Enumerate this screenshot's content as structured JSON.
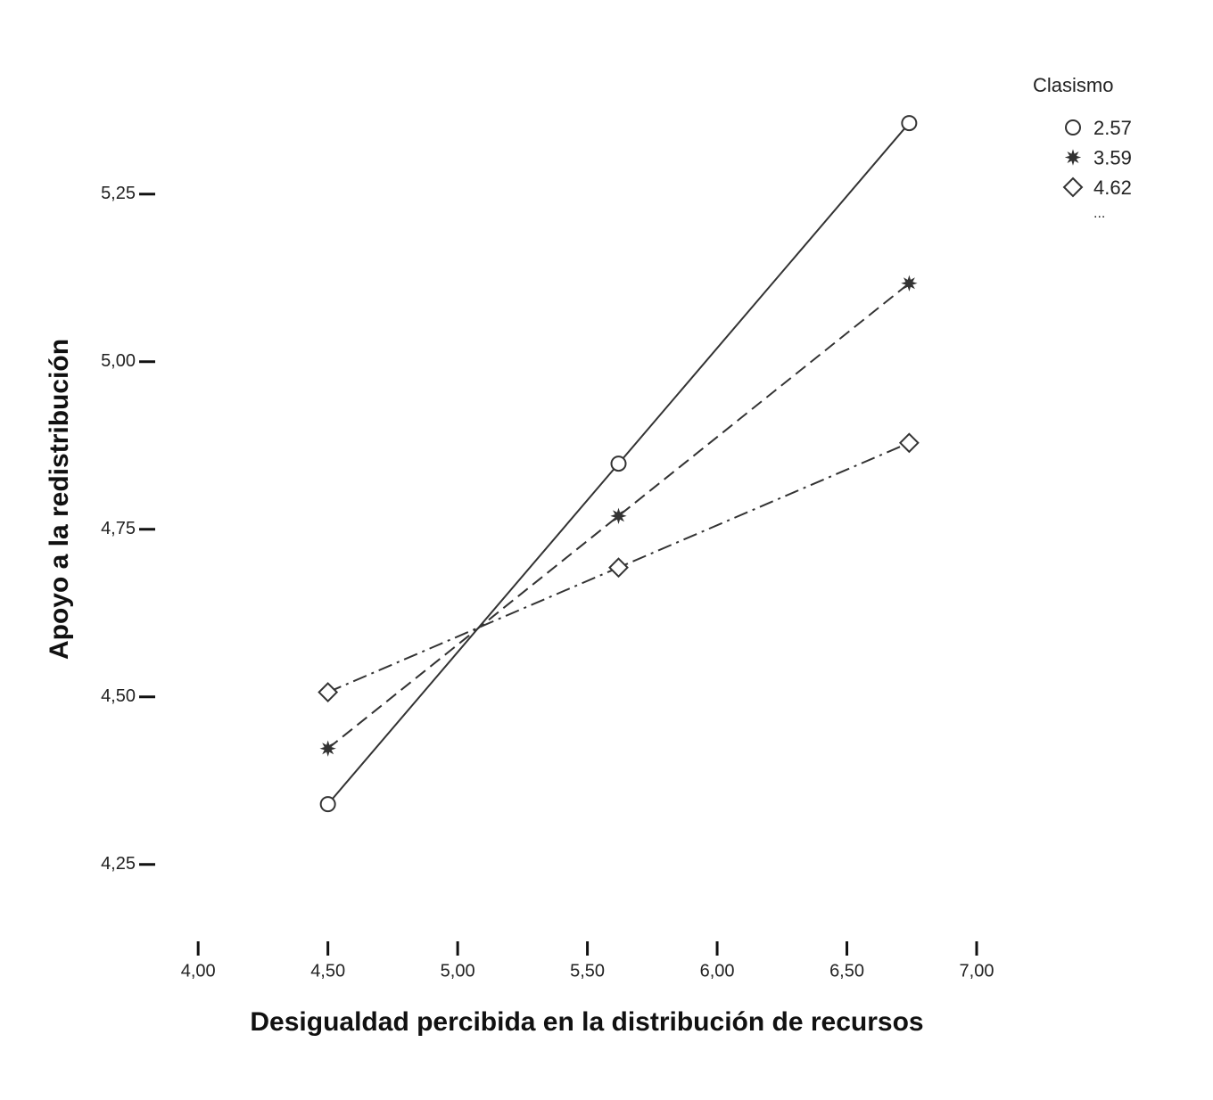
{
  "chart_data": {
    "type": "line",
    "x_label": "Desigualdad percibida en la distribución de recursos",
    "y_label": "Apoyo a la redistribución",
    "legend_title": "Clasismo",
    "legend_more": "...",
    "legend_position": "upper right",
    "x": [
      4.5,
      5.62,
      6.74
    ],
    "series": [
      {
        "name": "2.57",
        "color": "#333333",
        "marker": "circle",
        "dash": "solid",
        "values": [
          4.34,
          4.848,
          5.356
        ]
      },
      {
        "name": "3.59",
        "color": "#333333",
        "marker": "star",
        "dash": "dashed",
        "values": [
          4.423,
          4.77,
          5.117
        ]
      },
      {
        "name": "4.62",
        "color": "#333333",
        "marker": "diamond",
        "dash": "dashdot",
        "values": [
          4.507,
          4.693,
          4.879
        ]
      }
    ],
    "xlim": [
      3.8,
      7.0
    ],
    "xticks": [
      {
        "value": 4.0,
        "label": "4,00"
      },
      {
        "value": 4.5,
        "label": "4,50"
      },
      {
        "value": 5.0,
        "label": "5,00"
      },
      {
        "value": 5.5,
        "label": "5,50"
      },
      {
        "value": 6.0,
        "label": "6,00"
      },
      {
        "value": 6.5,
        "label": "6,50"
      },
      {
        "value": 7.0,
        "label": "7,00"
      }
    ],
    "ylim": [
      4.15,
      5.4
    ],
    "yticks": [
      {
        "value": 4.25,
        "label": "4,25"
      },
      {
        "value": 4.5,
        "label": "4,50"
      },
      {
        "value": 4.75,
        "label": "4,75"
      },
      {
        "value": 5.0,
        "label": "5,00"
      },
      {
        "value": 5.25,
        "label": "5,25"
      }
    ],
    "grid": false
  }
}
